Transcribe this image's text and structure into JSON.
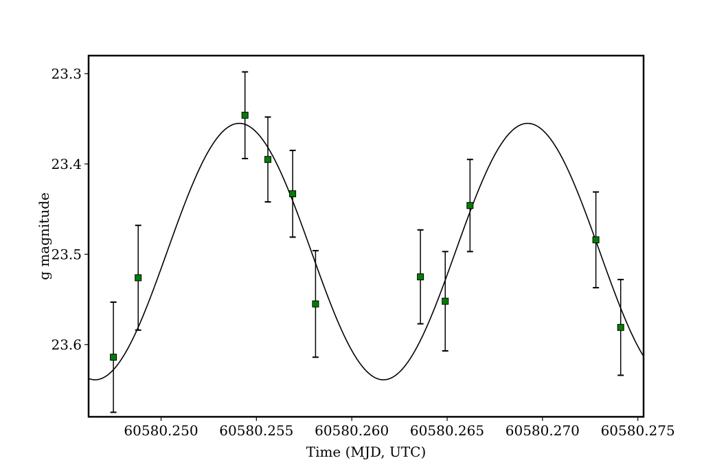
{
  "chart_data": {
    "type": "scatter",
    "title": "",
    "xlabel": "Time (MJD, UTC)",
    "ylabel": "g magnitude",
    "xlim": [
      60580.2462,
      60580.2753
    ],
    "ylim": [
      23.68,
      23.28
    ],
    "y_inverted": true,
    "grid": false,
    "x_ticks": [
      60580.25,
      60580.255,
      60580.26,
      60580.265,
      60580.27,
      60580.275
    ],
    "x_tick_labels": [
      "60580.250",
      "60580.255",
      "60580.260",
      "60580.265",
      "60580.270",
      "60580.275"
    ],
    "y_ticks": [
      23.3,
      23.4,
      23.5,
      23.6
    ],
    "y_tick_labels": [
      "23.3",
      "23.4",
      "23.5",
      "23.6"
    ],
    "series": [
      {
        "kind": "errorbar",
        "marker": "square",
        "color": "#007f00",
        "edge_color": "#000000",
        "points": [
          {
            "x": 60580.2475,
            "y": 23.614,
            "err": 0.061
          },
          {
            "x": 60580.2488,
            "y": 23.526,
            "err": 0.058
          },
          {
            "x": 60580.2544,
            "y": 23.346,
            "err": 0.048
          },
          {
            "x": 60580.2556,
            "y": 23.395,
            "err": 0.047
          },
          {
            "x": 60580.2569,
            "y": 23.433,
            "err": 0.048
          },
          {
            "x": 60580.2581,
            "y": 23.555,
            "err": 0.059
          },
          {
            "x": 60580.2636,
            "y": 23.525,
            "err": 0.052
          },
          {
            "x": 60580.2649,
            "y": 23.552,
            "err": 0.055
          },
          {
            "x": 60580.2662,
            "y": 23.446,
            "err": 0.051
          },
          {
            "x": 60580.2728,
            "y": 23.484,
            "err": 0.053
          },
          {
            "x": 60580.2741,
            "y": 23.581,
            "err": 0.053
          }
        ]
      },
      {
        "kind": "model",
        "line_color": "#000000",
        "function": "sinusoid",
        "mean": 23.497,
        "amplitude": 0.142,
        "period": 0.01512,
        "peak_at": 60580.2541
      }
    ]
  }
}
